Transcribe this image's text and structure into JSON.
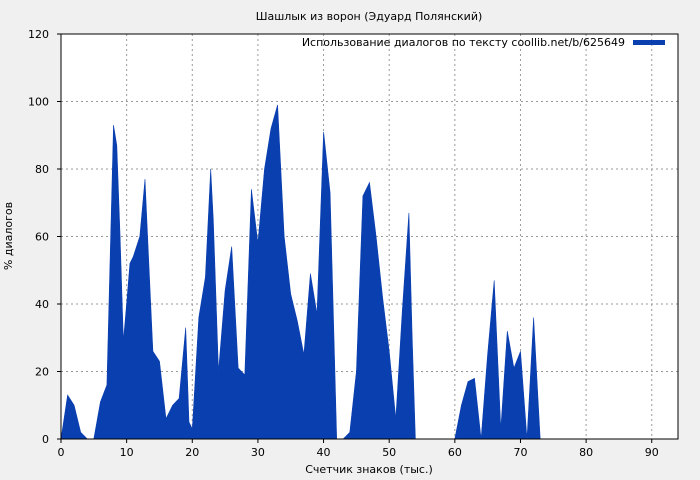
{
  "chart_data": {
    "type": "area",
    "title": "Шашлык из ворон (Эдуард Полянский)",
    "xlabel": "Счетчик знаков (тыс.)",
    "ylabel": "% диалогов",
    "xlim": [
      0,
      94
    ],
    "ylim": [
      0,
      120
    ],
    "xticks": [
      "0",
      "10",
      "20",
      "30",
      "40",
      "50",
      "60",
      "70",
      "80",
      "90"
    ],
    "yticks": [
      "0",
      "20",
      "40",
      "60",
      "80",
      "100",
      "120"
    ],
    "grid": true,
    "legend_position": "top-right",
    "color": "#0a3fb0",
    "series": [
      {
        "name": "Использование диалогов по тексту coollib.net/b/625649",
        "x": [
          0,
          1,
          2,
          3,
          4,
          5,
          6,
          7,
          8,
          8.5,
          9,
          9.5,
          10,
          10.5,
          11,
          12,
          12.8,
          13.2,
          14,
          15,
          16,
          17,
          18,
          19,
          19.5,
          20,
          21,
          22,
          22.8,
          23.2,
          24,
          25,
          26,
          27,
          28,
          29,
          30,
          31,
          32,
          33,
          34,
          35,
          36,
          37,
          38,
          39,
          40,
          41,
          42,
          43,
          44,
          45,
          46,
          47,
          48,
          49,
          50,
          51,
          52,
          53,
          53.5,
          54,
          55,
          56,
          57,
          58,
          59,
          60,
          61,
          62,
          63,
          64,
          65,
          66,
          67,
          68,
          69,
          70,
          71,
          72,
          73,
          74,
          75,
          76,
          77,
          78,
          79,
          80,
          81,
          82,
          83,
          84,
          85,
          86,
          87,
          88,
          89,
          90,
          91,
          92,
          93
        ],
        "values": [
          0,
          13,
          10,
          2,
          0,
          0,
          11,
          16,
          93,
          87,
          60,
          29,
          40,
          52,
          54,
          60,
          77,
          60,
          26,
          23,
          6,
          10,
          12,
          33,
          5,
          3,
          36,
          48,
          80,
          65,
          20,
          44,
          57,
          21,
          19,
          74,
          58,
          80,
          92,
          99,
          60,
          43,
          35,
          25,
          49,
          37,
          91,
          73,
          0,
          0,
          2,
          20,
          72,
          76,
          60,
          42,
          26,
          6,
          38,
          67,
          30,
          0,
          0,
          0,
          0,
          0,
          0,
          0,
          10,
          17,
          18,
          0,
          25,
          47,
          3,
          32,
          21,
          26,
          0,
          36,
          0,
          0,
          0,
          0,
          0,
          0,
          0,
          0,
          0,
          0,
          0,
          0,
          0,
          0,
          0,
          0,
          0,
          0,
          0,
          0,
          0
        ]
      }
    ]
  }
}
